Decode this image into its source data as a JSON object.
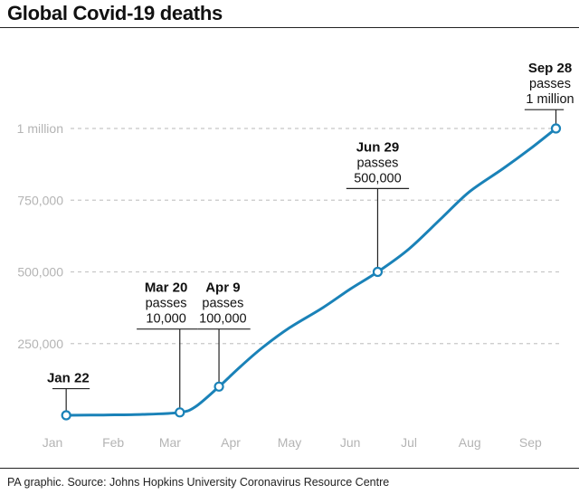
{
  "title": "Global Covid-19 deaths",
  "source": "PA graphic. Source: Johns Hopkins University Coronavirus Resource Centre",
  "colors": {
    "line": "#1a82b8",
    "grid": "#c8c8c8",
    "tick": "#b4b4b4",
    "text": "#111111"
  },
  "chart_data": {
    "type": "line",
    "title": "Global Covid-19 deaths",
    "xlabel": "",
    "ylabel": "",
    "x_unit": "date (2020)",
    "x_range": [
      "2020-01-15",
      "2020-10-01"
    ],
    "ylim": [
      0,
      1000000
    ],
    "yticks": [
      {
        "value": 250000,
        "label": "250,000"
      },
      {
        "value": 500000,
        "label": "500,000"
      },
      {
        "value": 750000,
        "label": "750,000"
      },
      {
        "value": 1000000,
        "label": "1 million"
      }
    ],
    "xticks": [
      {
        "date": "2020-01-15",
        "label": "Jan"
      },
      {
        "date": "2020-02-15",
        "label": "Feb"
      },
      {
        "date": "2020-03-15",
        "label": "Mar"
      },
      {
        "date": "2020-04-15",
        "label": "Apr"
      },
      {
        "date": "2020-05-15",
        "label": "May"
      },
      {
        "date": "2020-06-15",
        "label": "Jun"
      },
      {
        "date": "2020-07-15",
        "label": "Jul"
      },
      {
        "date": "2020-08-15",
        "label": "Aug"
      },
      {
        "date": "2020-09-15",
        "label": "Sep"
      }
    ],
    "grid": true,
    "series": [
      {
        "points": [
          {
            "x": "2020-01-22",
            "y": 0
          },
          {
            "x": "2020-02-10",
            "y": 1000
          },
          {
            "x": "2020-03-01",
            "y": 3000
          },
          {
            "x": "2020-03-20",
            "y": 10000
          },
          {
            "x": "2020-03-28",
            "y": 30000
          },
          {
            "x": "2020-04-09",
            "y": 100000
          },
          {
            "x": "2020-04-20",
            "y": 170000
          },
          {
            "x": "2020-05-01",
            "y": 235000
          },
          {
            "x": "2020-05-15",
            "y": 305000
          },
          {
            "x": "2020-06-01",
            "y": 375000
          },
          {
            "x": "2020-06-15",
            "y": 440000
          },
          {
            "x": "2020-06-29",
            "y": 500000
          },
          {
            "x": "2020-07-15",
            "y": 580000
          },
          {
            "x": "2020-08-01",
            "y": 690000
          },
          {
            "x": "2020-08-15",
            "y": 780000
          },
          {
            "x": "2020-09-01",
            "y": 860000
          },
          {
            "x": "2020-09-15",
            "y": 930000
          },
          {
            "x": "2020-09-28",
            "y": 1000000
          }
        ]
      }
    ],
    "annotations": [
      {
        "date": "2020-01-22",
        "y": 0,
        "lines": [
          "Jan 22"
        ],
        "text_date": "2020-01-23",
        "text_value": 115000,
        "leader_from": "2020-01-15",
        "leader_to": "2020-02-03"
      },
      {
        "date": "2020-03-20",
        "y": 10000,
        "lines": [
          "Mar 20",
          "passes",
          "10,000"
        ],
        "text_date": "2020-03-13",
        "text_value": 430000,
        "leader_from": "2020-02-27",
        "leader_to": "2020-03-29"
      },
      {
        "date": "2020-04-09",
        "y": 100000,
        "lines": [
          "Apr 9",
          "passes",
          "100,000"
        ],
        "text_date": "2020-04-11",
        "text_value": 430000,
        "leader_from": "2020-03-29",
        "leader_to": "2020-04-25"
      },
      {
        "date": "2020-06-29",
        "y": 500000,
        "lines": [
          "Jun 29",
          "passes",
          "500,000"
        ],
        "text_date": "2020-06-29",
        "text_value": 920000,
        "leader_from": "2020-06-13",
        "leader_to": "2020-07-15"
      },
      {
        "date": "2020-09-28",
        "y": 1000000,
        "lines": [
          "Sep 28",
          "passes",
          "1 million"
        ],
        "text_date": "2020-09-25",
        "text_value": 1195000,
        "leader_from": "2020-09-12",
        "leader_to": "2020-10-02"
      }
    ]
  }
}
